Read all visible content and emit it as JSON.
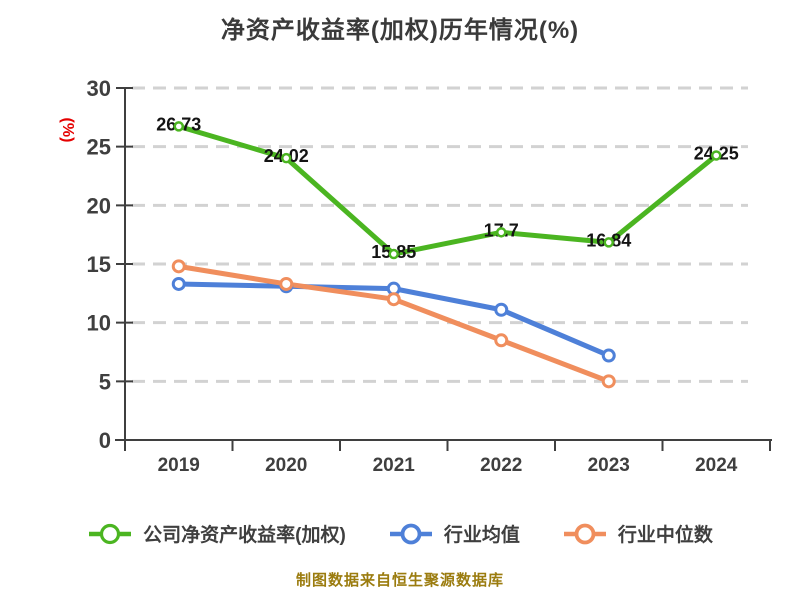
{
  "title": "净资产收益率(加权)历年情况(%)",
  "footer": "制图数据来自恒生聚源数据库",
  "y_axis": {
    "unit_label": "(%)",
    "min": 0,
    "max": 30,
    "step": 5,
    "ticks": [
      0,
      5,
      10,
      15,
      20,
      25,
      30
    ]
  },
  "chart_data": {
    "type": "line",
    "title": "净资产收益率(加权)历年情况(%)",
    "categories": [
      "2019",
      "2020",
      "2021",
      "2022",
      "2023",
      "2024"
    ],
    "series": [
      {
        "name": "公司净资产收益率(加权)",
        "color": "#4bb521",
        "values": [
          26.73,
          24.02,
          15.85,
          17.7,
          16.84,
          24.25
        ],
        "labels": [
          "26.73",
          "24.02",
          "15.85",
          "17.7",
          "16.84",
          "24.25"
        ],
        "point_labels_visible": true
      },
      {
        "name": "行业均值",
        "color": "#4e80d8",
        "values": [
          13.3,
          13.1,
          12.9,
          11.1,
          7.2,
          null
        ],
        "point_labels_visible": false
      },
      {
        "name": "行业中位数",
        "color": "#f08e5d",
        "values": [
          14.8,
          13.3,
          12.0,
          8.5,
          5.0,
          null
        ],
        "point_labels_visible": false
      }
    ],
    "ylabel": "(%)",
    "ylim": [
      0,
      30
    ],
    "grid": "horizontal-dashed",
    "legend_position": "bottom"
  },
  "colors": {
    "axis_text": "#3f3f3f",
    "grid_line": "#d2d2d2",
    "data_label": "#141414",
    "unit_label_red": "#e50000",
    "footer_gold": "#9b7c0f",
    "background": "#ffffff"
  }
}
